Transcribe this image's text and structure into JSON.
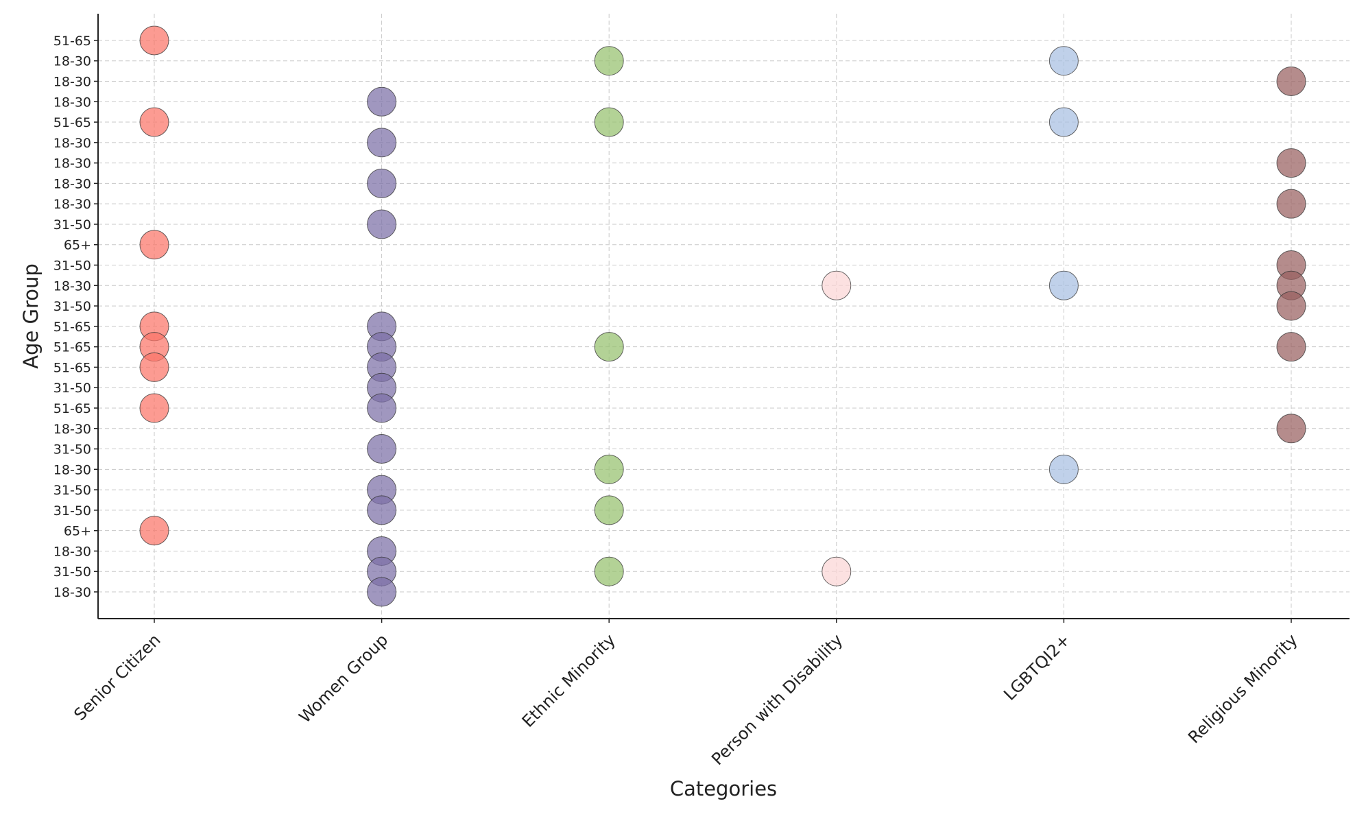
{
  "chart_data": {
    "type": "scatter",
    "title": "",
    "xlabel": "Categories",
    "ylabel": "Age Group",
    "grid": true,
    "categories": [
      "Senior Citizen",
      "Women Group",
      "Ethnic Minority",
      "Person with Disability",
      "LGBTQI2+",
      "Religious Minority"
    ],
    "y_ticks": [
      "18-30",
      "31-50",
      "18-30",
      "65+",
      "31-50",
      "31-50",
      "18-30",
      "31-50",
      "18-30",
      "51-65",
      "31-50",
      "51-65",
      "51-65",
      "51-65",
      "31-50",
      "18-30",
      "31-50",
      "65+",
      "31-50",
      "18-30",
      "18-30",
      "18-30",
      "18-30",
      "51-65",
      "18-30",
      "18-30",
      "18-30",
      "51-65"
    ],
    "series": [
      {
        "name": "Senior Citizen",
        "color": "#fb7468",
        "points": [
          {
            "x": "Senior Citizen",
            "y_index": 27,
            "label": "51-65"
          },
          {
            "x": "Senior Citizen",
            "y_index": 23,
            "label": "51-65"
          },
          {
            "x": "Senior Citizen",
            "y_index": 17,
            "label": "65+"
          },
          {
            "x": "Senior Citizen",
            "y_index": 13,
            "label": "51-65"
          },
          {
            "x": "Senior Citizen",
            "y_index": 12,
            "label": "51-65"
          },
          {
            "x": "Senior Citizen",
            "y_index": 11,
            "label": "51-65"
          },
          {
            "x": "Senior Citizen",
            "y_index": 9,
            "label": "51-65"
          },
          {
            "x": "Senior Citizen",
            "y_index": 3,
            "label": "65+"
          }
        ]
      },
      {
        "name": "Women Group",
        "color": "#7b6fa6",
        "points": [
          {
            "x": "Women Group",
            "y_index": 24,
            "label": "18-30"
          },
          {
            "x": "Women Group",
            "y_index": 22,
            "label": "18-30"
          },
          {
            "x": "Women Group",
            "y_index": 20,
            "label": "18-30"
          },
          {
            "x": "Women Group",
            "y_index": 18,
            "label": "31-50"
          },
          {
            "x": "Women Group",
            "y_index": 13,
            "label": "51-65"
          },
          {
            "x": "Women Group",
            "y_index": 12,
            "label": "51-65"
          },
          {
            "x": "Women Group",
            "y_index": 11,
            "label": "51-65"
          },
          {
            "x": "Women Group",
            "y_index": 10,
            "label": "31-50"
          },
          {
            "x": "Women Group",
            "y_index": 9,
            "label": "51-65"
          },
          {
            "x": "Women Group",
            "y_index": 7,
            "label": "31-50"
          },
          {
            "x": "Women Group",
            "y_index": 5,
            "label": "31-50"
          },
          {
            "x": "Women Group",
            "y_index": 4,
            "label": "31-50"
          },
          {
            "x": "Women Group",
            "y_index": 2,
            "label": "18-30"
          },
          {
            "x": "Women Group",
            "y_index": 1,
            "label": "31-50"
          },
          {
            "x": "Women Group",
            "y_index": 0,
            "label": "18-30"
          }
        ]
      },
      {
        "name": "Ethnic Minority",
        "color": "#96c06e",
        "points": [
          {
            "x": "Ethnic Minority",
            "y_index": 26,
            "label": "18-30"
          },
          {
            "x": "Ethnic Minority",
            "y_index": 23,
            "label": "51-65"
          },
          {
            "x": "Ethnic Minority",
            "y_index": 12,
            "label": "51-65"
          },
          {
            "x": "Ethnic Minority",
            "y_index": 6,
            "label": "18-30"
          },
          {
            "x": "Ethnic Minority",
            "y_index": 4,
            "label": "31-50"
          },
          {
            "x": "Ethnic Minority",
            "y_index": 1,
            "label": "31-50"
          }
        ]
      },
      {
        "name": "Person with Disability",
        "color": "#fbd6d6",
        "points": [
          {
            "x": "Person with Disability",
            "y_index": 15,
            "label": "18-30"
          },
          {
            "x": "Person with Disability",
            "y_index": 1,
            "label": "31-50"
          }
        ]
      },
      {
        "name": "LGBTQI2+",
        "color": "#a8bfe2",
        "points": [
          {
            "x": "LGBTQI2+",
            "y_index": 26,
            "label": "18-30"
          },
          {
            "x": "LGBTQI2+",
            "y_index": 23,
            "label": "51-65"
          },
          {
            "x": "LGBTQI2+",
            "y_index": 15,
            "label": "18-30"
          },
          {
            "x": "LGBTQI2+",
            "y_index": 6,
            "label": "18-30"
          }
        ]
      },
      {
        "name": "Religious Minority",
        "color": "#996060",
        "points": [
          {
            "x": "Religious Minority",
            "y_index": 25,
            "label": "18-30"
          },
          {
            "x": "Religious Minority",
            "y_index": 21,
            "label": "18-30"
          },
          {
            "x": "Religious Minority",
            "y_index": 19,
            "label": "18-30"
          },
          {
            "x": "Religious Minority",
            "y_index": 16,
            "label": "31-50"
          },
          {
            "x": "Religious Minority",
            "y_index": 15,
            "label": "18-30"
          },
          {
            "x": "Religious Minority",
            "y_index": 14,
            "label": "31-50"
          },
          {
            "x": "Religious Minority",
            "y_index": 12,
            "label": "51-65"
          },
          {
            "x": "Religious Minority",
            "y_index": 8,
            "label": "18-30"
          }
        ]
      }
    ]
  }
}
